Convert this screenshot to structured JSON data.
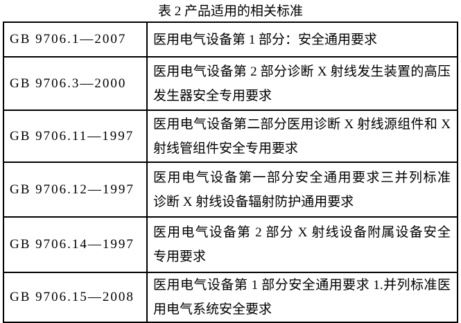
{
  "title": "表 2 产品适用的相关标准",
  "colors": {
    "border": "#000000",
    "text": "#000000",
    "background": "#ffffff"
  },
  "table": {
    "rows": [
      {
        "code": "GB 9706.1—2007",
        "lines": [
          "医用电气设备第 1 部分：安全通用要求"
        ]
      },
      {
        "code": "GB 9706.3—2000",
        "lines": [
          "医用电气设备第 2 部分诊断 X 射线发生装置的高压",
          "发生器安全专用要求"
        ]
      },
      {
        "code": "GB 9706.11—1997",
        "lines": [
          "医用电气设备第二部分医用诊断 X 射线源组件和 X",
          "射线管组件安全专用要求"
        ]
      },
      {
        "code": "GB 9706.12—1997",
        "lines": [
          "医用电气设备第一部分安全通用要求三并列标准",
          "诊断 X 射线设备辐射防护通用要求"
        ]
      },
      {
        "code": "GB 9706.14—1997",
        "lines": [
          "医用电气设备第 2 部分 X 射线设备附属设备安全",
          "专用要求"
        ]
      },
      {
        "code": "GB 9706.15—2008",
        "lines": [
          "医用电气设备第 1 部分安全通用要求 1.并列标准医",
          "用电气系统安全要求"
        ]
      }
    ]
  }
}
